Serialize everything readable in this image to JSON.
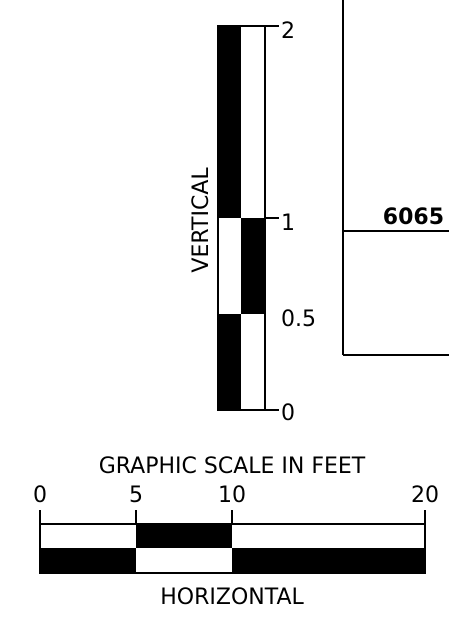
{
  "vertical_scale": {
    "caption": "VERTICAL",
    "tick_labels": [
      "2",
      "1",
      "0.5",
      "0"
    ]
  },
  "horizontal_scale": {
    "title": "GRAPHIC SCALE IN FEET",
    "caption": "HORIZONTAL",
    "tick_labels": [
      "0",
      "5",
      "10",
      "20"
    ]
  },
  "section": {
    "elevation_label": "6065"
  },
  "colors": {
    "ink": "#000000",
    "paper": "#ffffff"
  }
}
